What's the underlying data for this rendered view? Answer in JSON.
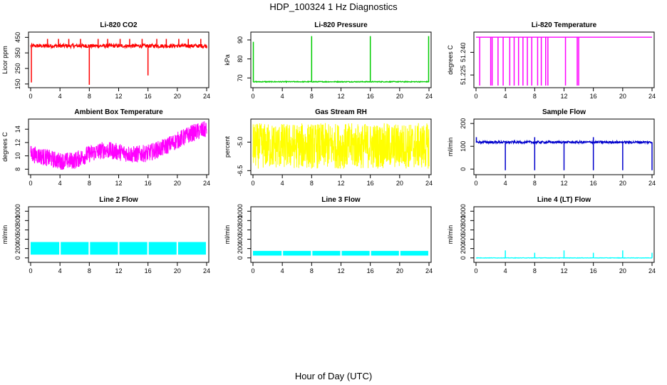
{
  "figure": {
    "title": "HDP_100324  1 Hz Diagnostics",
    "xlabel": "Hour of Day (UTC)"
  },
  "chart_data": [
    {
      "type": "line",
      "title": "Li-820 CO2",
      "ylabel": "Licor ppm",
      "color": "#FF0000",
      "xticks": [
        0,
        4,
        8,
        12,
        16,
        20,
        24
      ],
      "xlim": [
        0,
        24
      ],
      "yticks": [
        150,
        250,
        350,
        450
      ],
      "ytick_labels": [
        "150",
        "250",
        "350",
        "450"
      ],
      "ylim": [
        140,
        470
      ],
      "series": [
        {
          "baseline": 395,
          "noise": 12,
          "spikes_up": [
            [
              2.3,
              440
            ],
            [
              3.8,
              440
            ],
            [
              5.2,
              440
            ],
            [
              6.8,
              440
            ],
            [
              9.2,
              440
            ],
            [
              10.5,
              440
            ],
            [
              12.2,
              440
            ],
            [
              13.5,
              440
            ],
            [
              15.2,
              440
            ],
            [
              17.2,
              440
            ],
            [
              18.5,
              440
            ],
            [
              20.2,
              440
            ],
            [
              21.5,
              440
            ],
            [
              23.2,
              440
            ]
          ],
          "spikes_down": [
            [
              0.1,
              160
            ],
            [
              8.0,
              145
            ],
            [
              16.0,
              205
            ],
            [
              24.0,
              380
            ]
          ]
        }
      ]
    },
    {
      "type": "line",
      "title": "Li-820 Pressure",
      "ylabel": "kPa",
      "color": "#00CC00",
      "xticks": [
        0,
        4,
        8,
        12,
        16,
        20,
        24
      ],
      "xlim": [
        0,
        24
      ],
      "yticks": [
        70,
        80,
        90
      ],
      "ytick_labels": [
        "70",
        "80",
        "90"
      ],
      "ylim": [
        66,
        93
      ],
      "series": [
        {
          "baseline": 68,
          "noise": 0.2,
          "spikes_up": [
            [
              0.05,
              89
            ],
            [
              8.0,
              92
            ],
            [
              16.0,
              92
            ],
            [
              23.95,
              92
            ]
          ],
          "spikes_down": []
        }
      ]
    },
    {
      "type": "line",
      "title": "Li-820 Temperature",
      "ylabel": "degrees C",
      "color": "#FF00FF",
      "xticks": [
        0,
        4,
        8,
        12,
        16,
        20,
        24
      ],
      "xlim": [
        0,
        24
      ],
      "yticks": [
        51.225,
        51.24
      ],
      "ytick_labels": [
        "51.225",
        "51.240"
      ],
      "ylim": [
        51.218,
        51.252
      ],
      "series": [
        {
          "baseline": 51.25,
          "noise": 0,
          "spikes_down": [
            [
              0.5,
              51.218
            ],
            [
              2.0,
              51.218
            ],
            [
              2.2,
              51.218
            ],
            [
              3.0,
              51.218
            ],
            [
              3.7,
              51.218
            ],
            [
              4.6,
              51.218
            ],
            [
              5.2,
              51.218
            ],
            [
              5.8,
              51.218
            ],
            [
              6.4,
              51.218
            ],
            [
              7.0,
              51.218
            ],
            [
              7.6,
              51.218
            ],
            [
              8.4,
              51.218
            ],
            [
              8.9,
              51.218
            ],
            [
              9.5,
              51.218
            ],
            [
              9.8,
              51.218
            ],
            [
              12.2,
              51.218
            ],
            [
              13.8,
              51.218
            ],
            [
              14.0,
              51.218
            ]
          ],
          "spikes_up": []
        }
      ]
    },
    {
      "type": "line",
      "title": "Ambient Box Temperature",
      "ylabel": "degrees C",
      "color": "#FF00FF",
      "xticks": [
        0,
        4,
        8,
        12,
        16,
        20,
        24
      ],
      "xlim": [
        0,
        24
      ],
      "yticks": [
        8,
        10,
        12,
        14
      ],
      "ytick_labels": [
        "8",
        "10",
        "12",
        "14"
      ],
      "ylim": [
        7.5,
        15.2
      ],
      "series": [
        {
          "trend": [
            [
              0,
              10.3
            ],
            [
              2,
              9.8
            ],
            [
              4,
              9.2
            ],
            [
              6,
              9.3
            ],
            [
              8,
              10.3
            ],
            [
              10,
              10.9
            ],
            [
              12,
              10.6
            ],
            [
              14,
              10.2
            ],
            [
              16,
              10.4
            ],
            [
              18,
              11.2
            ],
            [
              20,
              12.3
            ],
            [
              22,
              13.4
            ],
            [
              24,
              14.0
            ]
          ],
          "band": 1.3
        }
      ]
    },
    {
      "type": "line",
      "title": "Gas Stream RH",
      "ylabel": "percent",
      "color": "#FFFF00",
      "xticks": [
        0,
        4,
        8,
        12,
        16,
        20,
        24
      ],
      "xlim": [
        0,
        24
      ],
      "yticks": [
        -6.5,
        -5.0
      ],
      "ytick_labels": [
        "-6.5",
        "-5.0"
      ],
      "ylim": [
        -6.6,
        -3.9
      ],
      "series": [
        {
          "trend": [
            [
              0,
              -5.2
            ],
            [
              24,
              -5.2
            ]
          ],
          "band": 1.2
        }
      ]
    },
    {
      "type": "line",
      "title": "Sample Flow",
      "ylabel": "ml/min",
      "color": "#0000CC",
      "xticks": [
        0,
        4,
        8,
        12,
        16,
        20,
        24
      ],
      "xlim": [
        0,
        24
      ],
      "yticks": [
        0,
        100,
        200
      ],
      "ytick_labels": [
        "0",
        "100",
        "200"
      ],
      "ylim": [
        -15,
        210
      ],
      "series": [
        {
          "baseline": 118,
          "noise": 5,
          "spikes_up": [
            [
              0.05,
              140
            ],
            [
              8.0,
              140
            ],
            [
              16.0,
              140
            ]
          ],
          "spikes_down": [
            [
              4.0,
              -5
            ],
            [
              8.0,
              -5
            ],
            [
              12.0,
              -5
            ],
            [
              16.0,
              -5
            ],
            [
              20.0,
              -5
            ],
            [
              24.0,
              -5
            ]
          ]
        }
      ]
    },
    {
      "type": "area",
      "title": "Line 2 Flow",
      "ylabel": "ml/min",
      "color": "#00FFFF",
      "xticks": [
        0,
        4,
        8,
        12,
        16,
        20,
        24
      ],
      "xlim": [
        0,
        24
      ],
      "yticks": [
        0,
        200,
        400,
        600,
        800,
        1000
      ],
      "ytick_labels": [
        "0",
        "200",
        "400",
        "600",
        "800",
        "1000"
      ],
      "ylim": [
        -50,
        1050
      ],
      "series": [
        {
          "low": 70,
          "high": 340,
          "gaps": [
            4,
            8,
            12,
            16,
            20
          ]
        }
      ]
    },
    {
      "type": "area",
      "title": "Line 3 Flow",
      "ylabel": "ml/min",
      "color": "#00FFFF",
      "xticks": [
        0,
        4,
        8,
        12,
        16,
        20,
        24
      ],
      "xlim": [
        0,
        24
      ],
      "yticks": [
        0,
        200,
        400,
        600,
        800,
        1000
      ],
      "ytick_labels": [
        "0",
        "200",
        "400",
        "600",
        "800",
        "1000"
      ],
      "ylim": [
        -50,
        1050
      ],
      "series": [
        {
          "low": 50,
          "high": 150,
          "gaps": [
            4,
            8,
            12,
            16,
            20
          ]
        }
      ]
    },
    {
      "type": "line",
      "title": "Line 4 (LT) Flow",
      "ylabel": "ml/min",
      "color": "#00FFFF",
      "xticks": [
        0,
        4,
        8,
        12,
        16,
        20,
        24
      ],
      "xlim": [
        0,
        24
      ],
      "yticks": [
        0,
        200,
        400,
        600,
        800,
        1000
      ],
      "ytick_labels": [
        "0",
        "200",
        "400",
        "600",
        "800",
        "1000"
      ],
      "ylim": [
        -50,
        1050
      ],
      "series": [
        {
          "baseline": 0,
          "noise": 4,
          "spikes_up": [
            [
              4.0,
              160
            ],
            [
              8.0,
              110
            ],
            [
              12.0,
              160
            ],
            [
              16.0,
              110
            ],
            [
              20.0,
              160
            ],
            [
              24.0,
              110
            ]
          ],
          "spikes_down": []
        }
      ]
    }
  ]
}
